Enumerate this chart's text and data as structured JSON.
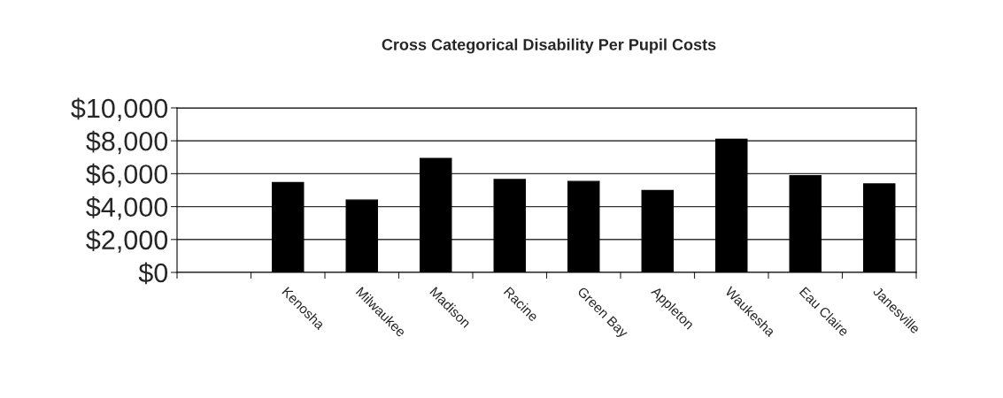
{
  "chart_data": {
    "type": "bar",
    "title": "Cross Categorical Disability Per Pupil Costs",
    "categories": [
      null,
      "Kenosha",
      "Milwaukee",
      "Madison",
      "Racine",
      "Green Bay",
      "Appleton",
      "Waukesha",
      "Eau Claire",
      "Janesville"
    ],
    "values": [
      null,
      5460,
      4400,
      6920,
      5650,
      5530,
      4970,
      8100,
      5880,
      5380
    ],
    "color": "#000000",
    "ylim": [
      0,
      10000
    ],
    "yticks": [
      {
        "value": 0,
        "label": "$0"
      },
      {
        "value": 2000,
        "label": "$2,000"
      },
      {
        "value": 4000,
        "label": "$4,000"
      },
      {
        "value": 6000,
        "label": "$6,000"
      },
      {
        "value": 8000,
        "label": "$8,000"
      },
      {
        "value": 10000,
        "label": "$10,000"
      }
    ],
    "grid": "y",
    "legend": false
  }
}
